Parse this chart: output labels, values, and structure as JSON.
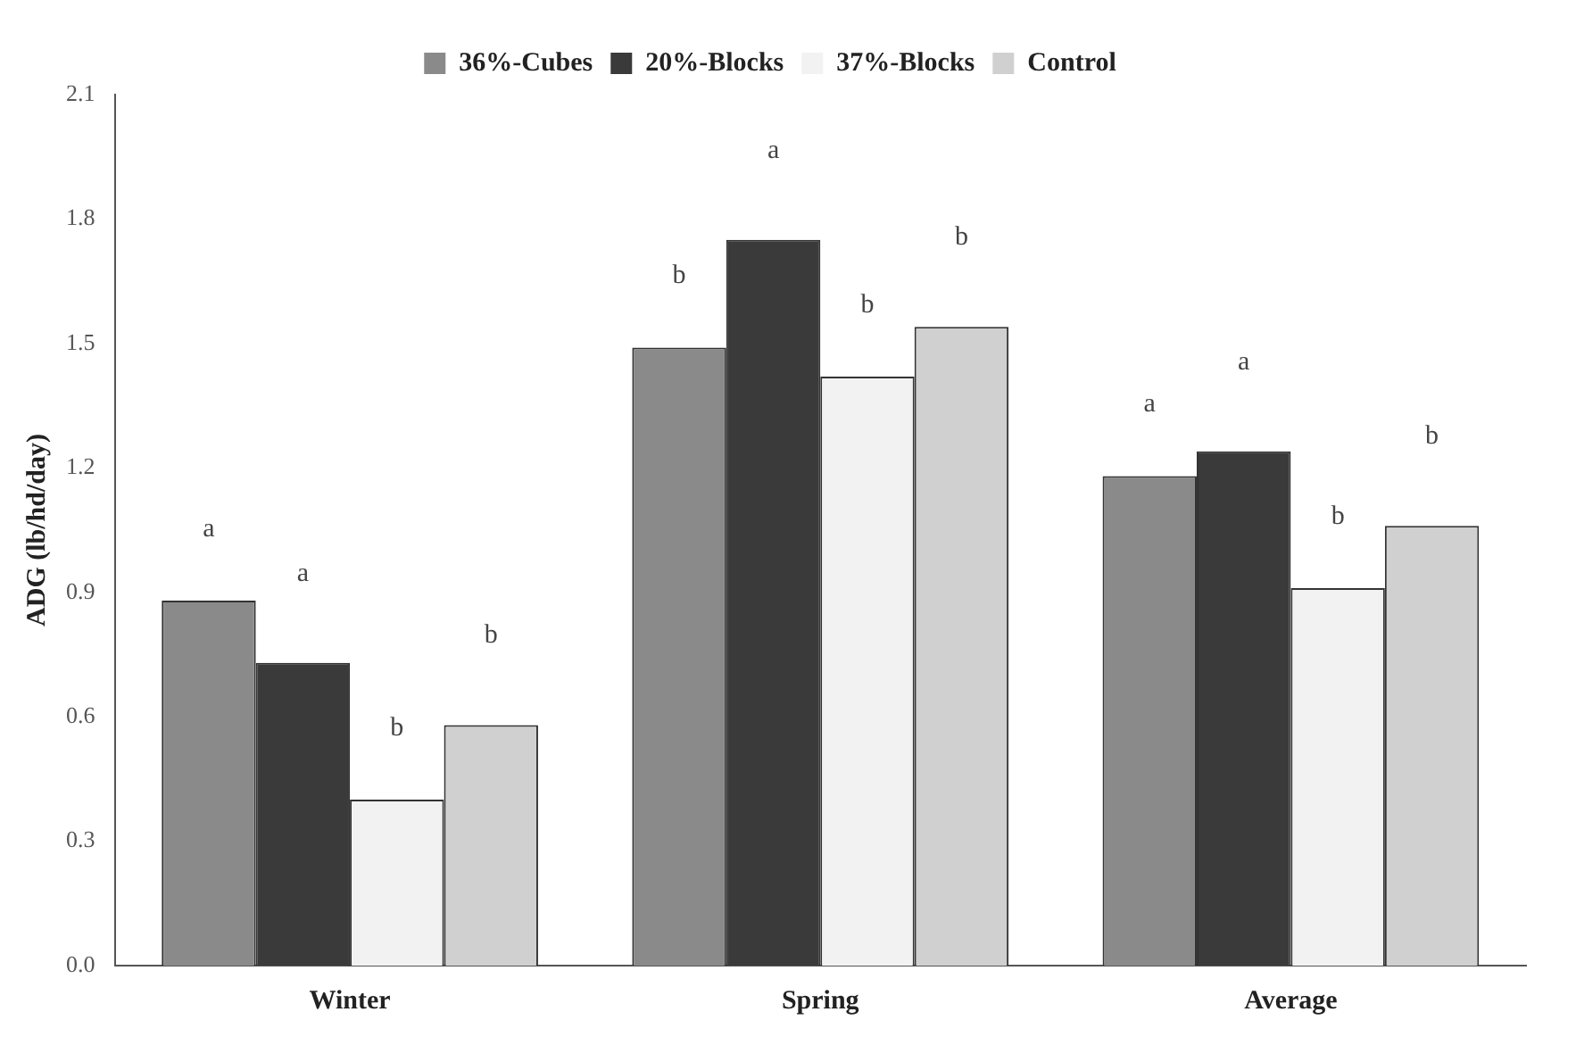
{
  "chart_data": {
    "type": "bar",
    "ylabel": "ADG (lb/hd/day)",
    "categories": [
      "Winter",
      "Spring",
      "Average"
    ],
    "series": [
      {
        "name": "36%-Cubes",
        "color": "#8a8a8a",
        "values": [
          0.88,
          1.49,
          1.18
        ]
      },
      {
        "name": "20%-Blocks",
        "color": "#3a3a3a",
        "values": [
          0.73,
          1.75,
          1.24
        ]
      },
      {
        "name": "37%-Blocks",
        "color": "#f2f2f2",
        "values": [
          0.4,
          1.42,
          0.91
        ]
      },
      {
        "name": "Control",
        "color": "#d0d0d0",
        "values": [
          0.58,
          1.54,
          1.06
        ]
      }
    ],
    "ylim": [
      0,
      2.1
    ],
    "yticks": [
      {
        "value": 0,
        "label": "0.0"
      },
      0.3,
      0.6,
      0.9,
      1.2,
      1.5,
      1.8,
      2.1
    ],
    "grid": false,
    "legend": "top",
    "annotations": [
      "a",
      "a",
      "b",
      "b",
      "b",
      "a",
      "b",
      "b",
      "a",
      "a",
      "b",
      "b"
    ]
  }
}
